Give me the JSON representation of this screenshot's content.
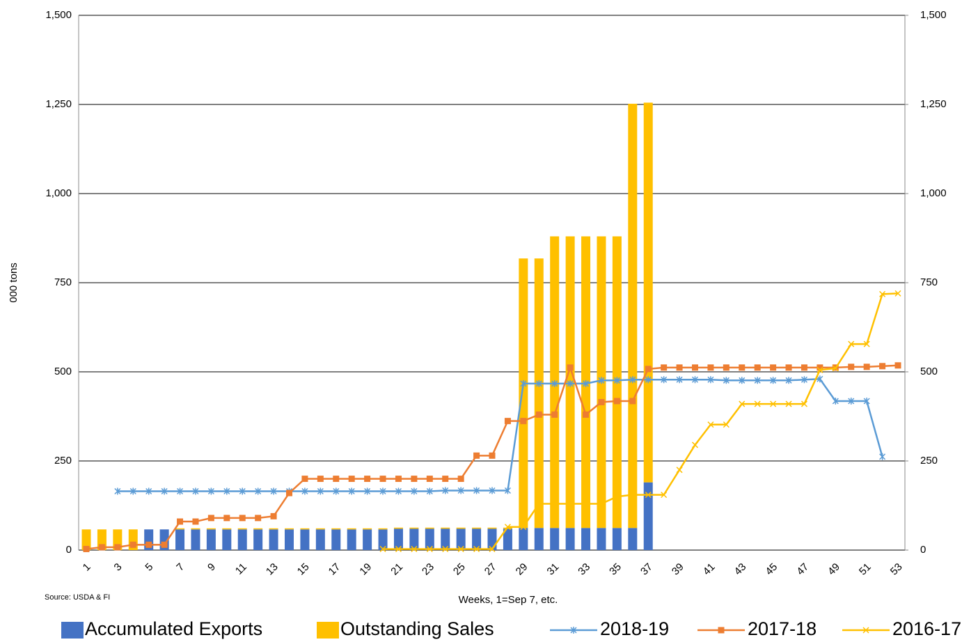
{
  "chart_data": {
    "type": "bar",
    "y_label": "000 tons",
    "x_label": "Weeks, 1=Sep 7, etc.",
    "source": "Source: USDA & FI",
    "categories": [
      "1",
      null,
      "3",
      null,
      "5",
      null,
      "7",
      null,
      "9",
      null,
      "11",
      null,
      "13",
      null,
      "15",
      null,
      "17",
      null,
      "19",
      null,
      "21",
      null,
      "23",
      null,
      "25",
      null,
      "27",
      null,
      "29",
      null,
      "31",
      null,
      "33",
      null,
      "35",
      null,
      "37",
      null,
      "39",
      null,
      "41",
      null,
      "43",
      null,
      "45",
      null,
      "47",
      null,
      "49",
      null,
      "51",
      null,
      "53"
    ],
    "series": [
      {
        "name": "Accumulated Exports",
        "kind": "bar",
        "color": "#4472c4",
        "values": [
          0,
          0,
          0,
          0,
          58,
          58,
          58,
          58,
          58,
          58,
          58,
          58,
          58,
          58,
          58,
          58,
          58,
          58,
          58,
          58,
          60,
          60,
          60,
          60,
          60,
          60,
          60,
          60,
          62,
          62,
          62,
          62,
          62,
          62,
          62,
          62,
          190,
          null,
          null,
          null,
          null,
          null,
          null,
          null,
          null,
          null,
          null,
          null,
          null,
          null,
          null,
          null,
          null
        ]
      },
      {
        "name": "Outstanding Sales",
        "kind": "bar",
        "color": "#ffc000",
        "values": [
          58,
          58,
          58,
          58,
          0,
          0,
          3,
          3,
          3,
          3,
          3,
          3,
          3,
          3,
          3,
          3,
          3,
          3,
          3,
          3,
          3,
          3,
          3,
          3,
          3,
          3,
          3,
          3,
          756,
          756,
          818,
          818,
          818,
          818,
          818,
          1190,
          1065,
          null,
          null,
          null,
          null,
          null,
          null,
          null,
          null,
          null,
          null,
          null,
          null,
          null,
          null,
          null,
          null
        ]
      },
      {
        "name": "2018-19",
        "kind": "line",
        "marker": "star",
        "axis": "y2",
        "color": "#5b9bd5",
        "values": [
          null,
          null,
          165,
          165,
          165,
          165,
          165,
          165,
          165,
          165,
          165,
          165,
          165,
          165,
          165,
          165,
          165,
          165,
          165,
          165,
          165,
          165,
          165,
          167,
          167,
          167,
          167,
          167,
          467,
          467,
          467,
          467,
          467,
          476,
          476,
          478,
          478,
          478,
          478,
          478,
          478,
          476,
          476,
          476,
          476,
          476,
          478,
          480,
          418,
          418,
          418,
          262,
          null
        ]
      },
      {
        "name": "2017-18",
        "kind": "line",
        "marker": "square",
        "axis": "y2",
        "color": "#ed7d31",
        "values": [
          3,
          8,
          8,
          15,
          15,
          15,
          80,
          80,
          90,
          90,
          90,
          90,
          95,
          160,
          200,
          200,
          200,
          200,
          200,
          200,
          200,
          200,
          200,
          200,
          200,
          265,
          265,
          362,
          362,
          380,
          380,
          512,
          380,
          415,
          418,
          418,
          508,
          512,
          512,
          512,
          512,
          512,
          512,
          512,
          512,
          512,
          512,
          512,
          512,
          514,
          514,
          516,
          518
        ]
      },
      {
        "name": "2016-17",
        "kind": "line",
        "marker": "x",
        "axis": "y2",
        "color": "#ffc000",
        "values": [
          null,
          null,
          null,
          null,
          null,
          null,
          null,
          null,
          null,
          null,
          null,
          null,
          null,
          null,
          null,
          null,
          null,
          null,
          null,
          3,
          3,
          3,
          3,
          3,
          3,
          3,
          3,
          65,
          65,
          130,
          130,
          130,
          130,
          130,
          150,
          155,
          155,
          155,
          225,
          295,
          352,
          352,
          410,
          410,
          410,
          410,
          410,
          505,
          510,
          578,
          578,
          718,
          720
        ]
      }
    ],
    "ylim": [
      0,
      1500
    ],
    "yticks": [
      0,
      {
        "value": 250,
        "label": "250"
      },
      500,
      750,
      {
        "value": 1000,
        "label": "1,000"
      },
      {
        "value": 1250,
        "label": "1,250"
      },
      {
        "value": 1500,
        "label": "1,500"
      }
    ],
    "y2lim": [
      0,
      1500
    ],
    "y2ticks": [
      0,
      250,
      500,
      750,
      {
        "value": 1000,
        "label": "1,000"
      },
      {
        "value": 1250,
        "label": "1,250"
      },
      {
        "value": 1500,
        "label": "1,500"
      }
    ],
    "grid": true,
    "stacked": true,
    "legend": "bottom"
  }
}
